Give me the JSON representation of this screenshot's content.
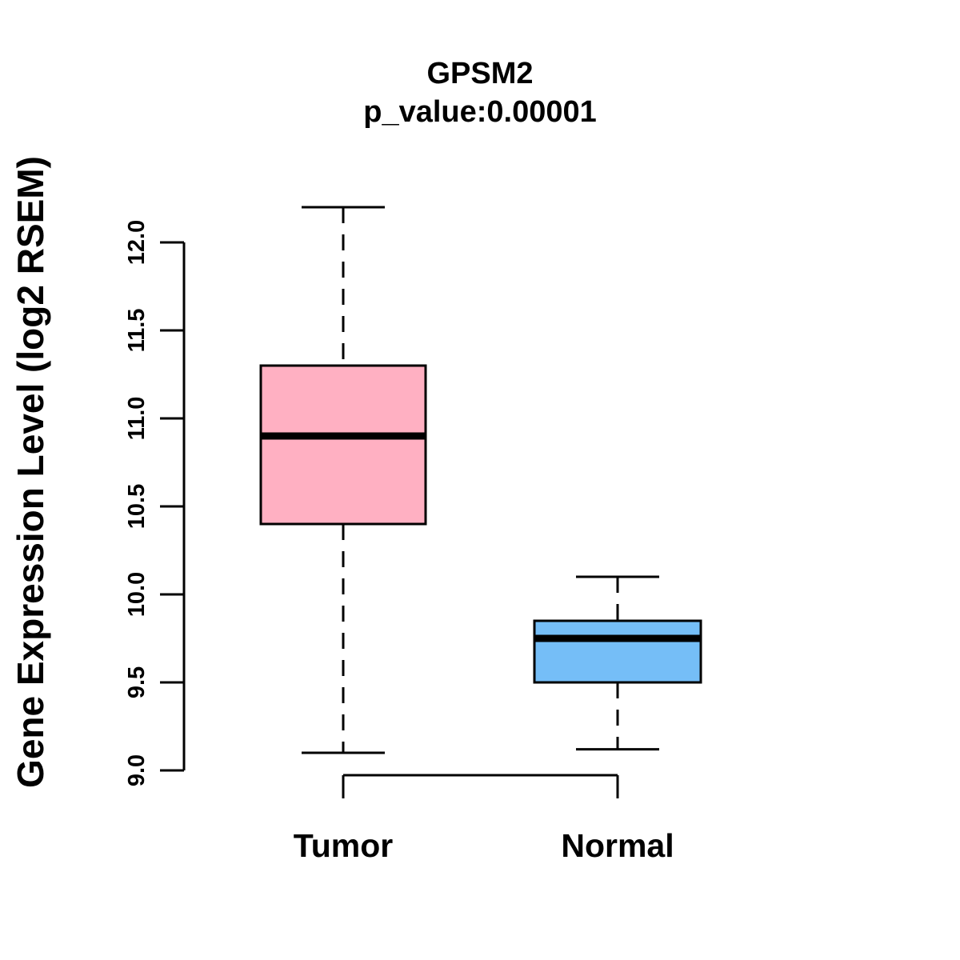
{
  "title": {
    "gene": "GPSM2",
    "pvalue": "p_value:0.00001"
  },
  "axis": {
    "ylabel": "Gene Expression Level (log2 RSEM)",
    "ymin": 9.0,
    "ymax": 12.0,
    "ticks": [
      {
        "value": 9.0,
        "label": "9.0"
      },
      {
        "value": 9.5,
        "label": "9.5"
      },
      {
        "value": 10.0,
        "label": "10.0"
      },
      {
        "value": 10.5,
        "label": "10.5"
      },
      {
        "value": 11.0,
        "label": "11.0"
      },
      {
        "value": 11.5,
        "label": "11.5"
      },
      {
        "value": 12.0,
        "label": "12.0"
      }
    ]
  },
  "chart_data": {
    "type": "boxplot",
    "title": "GPSM2",
    "subtitle": "p_value:0.00001",
    "ylabel": "Gene Expression Level (log2 RSEM)",
    "ylim": [
      9.0,
      12.0
    ],
    "grid": false,
    "categories": [
      "Tumor",
      "Normal"
    ],
    "groups": [
      {
        "label": "Tumor",
        "fill_color": "#FFB0C2",
        "whisker_low": 9.1,
        "q1": 10.4,
        "median": 10.9,
        "q3": 11.3,
        "whisker_high": 12.2
      },
      {
        "label": "Normal",
        "fill_color": "#75BEF7",
        "whisker_low": 9.12,
        "q1": 9.5,
        "median": 9.75,
        "q3": 9.85,
        "whisker_high": 10.1
      }
    ]
  },
  "colors": {
    "stroke": "#000000",
    "background": "#FFFFFF",
    "tumor_fill": "#FFB0C2",
    "normal_fill": "#75BEF7"
  }
}
